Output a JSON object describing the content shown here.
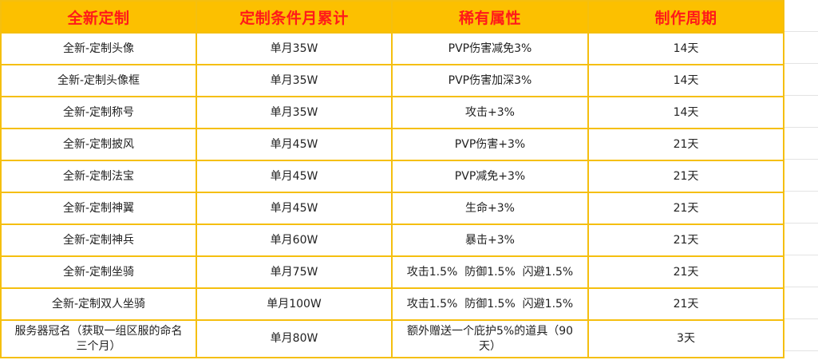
{
  "table": {
    "headers": [
      "全新定制",
      "定制条件月累计",
      "稀有属性",
      "制作周期"
    ],
    "rows": [
      {
        "item": "全新-定制头像",
        "condition": "单月35W",
        "attribute": "PVP伤害减免3%",
        "period": "14天"
      },
      {
        "item": "全新-定制头像框",
        "condition": "单月35W",
        "attribute": "PVP伤害加深3%",
        "period": "14天"
      },
      {
        "item": "全新-定制称号",
        "condition": "单月35W",
        "attribute": "攻击+3%",
        "period": "14天"
      },
      {
        "item": "全新-定制披风",
        "condition": "单月45W",
        "attribute": "PVP伤害+3%",
        "period": "21天"
      },
      {
        "item": "全新-定制法宝",
        "condition": "单月45W",
        "attribute": "PVP减免+3%",
        "period": "21天"
      },
      {
        "item": "全新-定制神翼",
        "condition": "单月45W",
        "attribute": "生命+3%",
        "period": "21天"
      },
      {
        "item": "全新-定制神兵",
        "condition": "单月60W",
        "attribute": "暴击+3%",
        "period": "21天"
      },
      {
        "item": "全新-定制坐骑",
        "condition": "单月75W",
        "attribute": "攻击1.5%  防御1.5%  闪避1.5%",
        "period": "21天"
      },
      {
        "item": "全新-定制双人坐骑",
        "condition": "单月100W",
        "attribute": "攻击1.5%  防御1.5%  闪避1.5%",
        "period": "21天"
      },
      {
        "item_line1": "服务器冠名（获取一组区服的命名",
        "item_line2": "三个月）",
        "condition": "单月80W",
        "attribute_line1": "额外赠送一个庇护5%的道具（90",
        "attribute_line2": "天）",
        "period": "3天"
      }
    ]
  },
  "colors": {
    "header_bg": "#fcc000",
    "header_text": "#ff1a1a",
    "border": "#f5bf0f"
  }
}
